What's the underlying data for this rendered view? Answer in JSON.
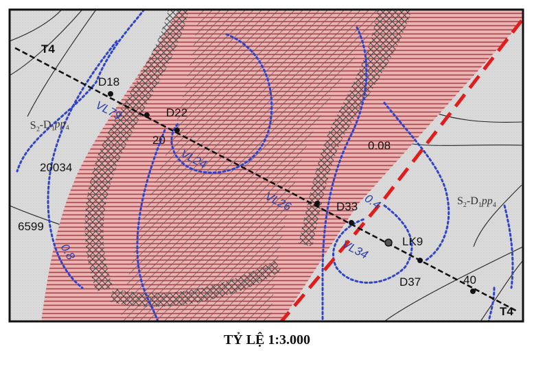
{
  "map": {
    "profile_line_start": "T4",
    "profile_line_end": "T4",
    "points": [
      {
        "name": "D18"
      },
      {
        "name": "D22"
      },
      {
        "name": "D33"
      },
      {
        "name": "LK9"
      },
      {
        "name": "D37"
      }
    ],
    "samples": [
      {
        "name": "VL79"
      },
      {
        "name": "VL24"
      },
      {
        "name": "VL26"
      },
      {
        "name": "VL34"
      }
    ],
    "values": [
      "20",
      "0.08",
      "20034",
      "6599",
      "40"
    ],
    "contour_labels": [
      "0.4",
      "0.8"
    ],
    "formation_left": {
      "main": "S",
      "sub1": "2",
      "mid": "-D",
      "sub2": "1",
      "unit": "pp",
      "sub3": "4"
    },
    "formation_right": {
      "main": "S",
      "sub1": "2",
      "mid": "-D",
      "sub2": "1",
      "unit": "pp",
      "sub3": "4"
    },
    "colors": {
      "hatch_red": "#c4333b",
      "contour_blue": "#2f44c8",
      "fault_red": "#e21b1b",
      "ore_body": "#4a4a4a",
      "background": "#d9d9d9"
    }
  },
  "caption": {
    "scale_text": "TỶ LỆ 1:3.000"
  }
}
